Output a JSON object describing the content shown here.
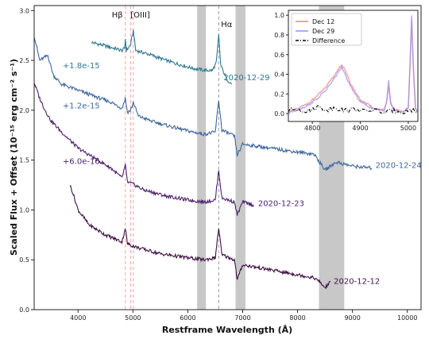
{
  "chart_data": [
    {
      "type": "line",
      "title": "",
      "xlabel": "Restframe Wavelength (Å)",
      "ylabel": "Scaled Flux + Offset (10⁻¹⁵ erg cm⁻² s⁻¹)",
      "xlim": [
        3200,
        10250
      ],
      "ylim": [
        0.0,
        3.05
      ],
      "xticks": [
        4000,
        5000,
        6000,
        7000,
        8000,
        9000,
        10000
      ],
      "yticks": [
        0.0,
        0.5,
        1.0,
        1.5,
        2.0,
        2.5,
        3.0
      ],
      "ytick_labels": [
        "0.0",
        "0.5",
        "1.0",
        "1.5",
        "2.0",
        "2.5",
        "3.0"
      ],
      "grid": false,
      "bands": [
        [
          6170,
          6330
        ],
        [
          6870,
          7050
        ],
        [
          8390,
          8850
        ]
      ],
      "line_markers": [
        {
          "label": "Hβ",
          "x": 4861,
          "color": "#f2a6a6",
          "style": "dashed"
        },
        {
          "label": "[OIII]",
          "x": 4959,
          "color": "#f2a6a6",
          "style": "dashed"
        },
        {
          "label": "",
          "x": 5007,
          "color": "#f2a6a6",
          "style": "dashed"
        },
        {
          "label": "Hα",
          "x": 6563,
          "color": "#999999",
          "style": "dashed"
        }
      ],
      "series": [
        {
          "name": "2020-12-29",
          "offset_label": "+1.8e-15",
          "color": "#2e7891",
          "x": [
            4250,
            4400,
            4600,
            4800,
            4850,
            4861,
            4880,
            4959,
            5007,
            5050,
            5300,
            5600,
            5900,
            6100,
            6300,
            6450,
            6520,
            6563,
            6600,
            6700,
            6800
          ],
          "y": [
            2.68,
            2.66,
            2.63,
            2.6,
            2.62,
            2.72,
            2.6,
            2.66,
            2.8,
            2.6,
            2.56,
            2.5,
            2.45,
            2.42,
            2.4,
            2.4,
            2.48,
            2.75,
            2.45,
            2.32,
            2.26
          ]
        },
        {
          "name": "2020-12-24",
          "offset_label": "+1.2e-15",
          "color": "#3e66a0",
          "x": [
            3200,
            3300,
            3450,
            3550,
            3700,
            4000,
            4300,
            4600,
            4800,
            4861,
            4900,
            4959,
            5007,
            5100,
            5400,
            5800,
            6100,
            6300,
            6500,
            6563,
            6620,
            6850,
            6900,
            7000,
            7500,
            8000,
            8300,
            8500,
            8700,
            9000,
            9350
          ],
          "y": [
            2.75,
            2.5,
            2.55,
            2.35,
            2.26,
            2.2,
            2.14,
            2.08,
            2.02,
            2.12,
            1.98,
            2.0,
            2.08,
            1.94,
            1.88,
            1.82,
            1.78,
            1.76,
            1.78,
            2.1,
            1.8,
            1.74,
            1.55,
            1.66,
            1.62,
            1.58,
            1.56,
            1.4,
            1.48,
            1.44,
            1.42
          ]
        },
        {
          "name": "2020-12-23",
          "offset_label": "+6.0e-16",
          "color": "#4b1f6f",
          "x": [
            3200,
            3300,
            3400,
            3500,
            3700,
            4000,
            4300,
            4600,
            4800,
            4861,
            4900,
            5000,
            5200,
            5600,
            6000,
            6300,
            6500,
            6563,
            6620,
            6850,
            6900,
            7000,
            7200
          ],
          "y": [
            2.28,
            2.12,
            2.0,
            1.9,
            1.78,
            1.62,
            1.52,
            1.42,
            1.32,
            1.45,
            1.28,
            1.26,
            1.2,
            1.14,
            1.1,
            1.08,
            1.1,
            1.4,
            1.12,
            1.08,
            0.95,
            1.08,
            1.05
          ]
        },
        {
          "name": "2020-12-12",
          "offset_label": "",
          "color": "#3f1045",
          "x": [
            3850,
            3900,
            4000,
            4200,
            4500,
            4800,
            4861,
            4900,
            5100,
            5500,
            6000,
            6300,
            6500,
            6563,
            6620,
            6850,
            6900,
            7000,
            7500,
            8000,
            8300,
            8400,
            8500,
            8600
          ],
          "y": [
            1.25,
            1.18,
            1.0,
            0.85,
            0.75,
            0.68,
            0.82,
            0.66,
            0.62,
            0.56,
            0.52,
            0.5,
            0.52,
            0.82,
            0.55,
            0.5,
            0.3,
            0.45,
            0.4,
            0.35,
            0.32,
            0.28,
            0.22,
            0.28
          ]
        }
      ]
    },
    {
      "type": "line",
      "title": "",
      "xlabel": "",
      "ylabel": "",
      "xlim": [
        4750,
        5020
      ],
      "ylim": [
        -0.08,
        1.05
      ],
      "xticks": [
        4800,
        4900,
        5000
      ],
      "yticks": [
        0.0,
        0.2,
        0.4,
        0.6,
        0.8,
        1.0
      ],
      "ytick_labels": [
        "0.0",
        "0.2",
        "0.4",
        "0.6",
        "0.8",
        "1.0"
      ],
      "legend": "top-left",
      "series": [
        {
          "name": "Dec 12",
          "color": "#f08080",
          "x": [
            4750,
            4770,
            4790,
            4810,
            4830,
            4845,
            4855,
            4861,
            4868,
            4880,
            4900,
            4930,
            4950,
            4955,
            4959,
            4963,
            4970,
            4990,
            5000,
            5004,
            5007,
            5010,
            5015,
            5020
          ],
          "y": [
            0.02,
            0.05,
            0.1,
            0.18,
            0.28,
            0.38,
            0.46,
            0.5,
            0.44,
            0.3,
            0.14,
            0.05,
            0.04,
            0.12,
            0.28,
            0.1,
            0.04,
            0.02,
            0.06,
            0.5,
            0.95,
            0.5,
            0.05,
            0.02
          ]
        },
        {
          "name": "Dec 29",
          "color": "#9b8fe8",
          "x": [
            4750,
            4770,
            4790,
            4810,
            4830,
            4845,
            4855,
            4861,
            4868,
            4880,
            4900,
            4930,
            4950,
            4955,
            4959,
            4963,
            4970,
            4990,
            5000,
            5004,
            5007,
            5010,
            5015,
            5020
          ],
          "y": [
            0.01,
            0.04,
            0.08,
            0.15,
            0.25,
            0.35,
            0.43,
            0.47,
            0.4,
            0.27,
            0.12,
            0.04,
            0.03,
            0.14,
            0.34,
            0.12,
            0.03,
            0.02,
            0.06,
            0.55,
            1.0,
            0.55,
            0.06,
            0.02
          ]
        },
        {
          "name": "Difference",
          "color": "#000000",
          "x": [
            4750,
            4770,
            4790,
            4810,
            4830,
            4850,
            4870,
            4890,
            4910,
            4930,
            4950,
            4970,
            4990,
            5010,
            5020
          ],
          "y": [
            0.03,
            0.05,
            0.02,
            0.07,
            0.04,
            0.06,
            0.03,
            0.05,
            0.02,
            0.04,
            0.01,
            0.03,
            0.02,
            0.04,
            0.01
          ]
        }
      ]
    }
  ]
}
